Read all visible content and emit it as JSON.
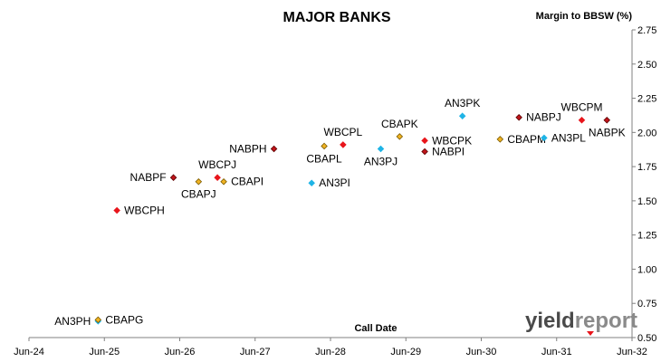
{
  "chart_data": {
    "type": "scatter",
    "title": "MAJOR BANKS",
    "ylabel": "Margin to BBSW (%)",
    "xlabel": "Call Date",
    "ylim": [
      0.5,
      2.75
    ],
    "yticks": [
      "0.50",
      "0.75",
      "1.00",
      "1.25",
      "1.50",
      "1.75",
      "2.00",
      "2.25",
      "2.50",
      "2.75"
    ],
    "xlim": [
      "2024-06",
      "2032-06"
    ],
    "xticks": [
      "Jun-24",
      "Jun-25",
      "Jun-26",
      "Jun-27",
      "Jun-28",
      "Jun-29",
      "Jun-30",
      "Jun-31",
      "Jun-32"
    ],
    "grid": false,
    "legend": "none",
    "colors": {
      "ANZ": "#1fb4e6",
      "CBA": "#f0b323",
      "NAB": "#c0151b",
      "WBC": "#e8151b"
    },
    "points": [
      {
        "label": "AN3PH",
        "bank": "ANZ",
        "x": "2025-05",
        "y": 0.62,
        "label_pos": "left"
      },
      {
        "label": "CBAPG",
        "bank": "CBA",
        "x": "2025-05",
        "y": 0.63,
        "label_pos": "right"
      },
      {
        "label": "WBCPH",
        "bank": "WBC",
        "x": "2025-08",
        "y": 1.43,
        "label_pos": "right"
      },
      {
        "label": "NABPF",
        "bank": "NAB",
        "x": "2026-05",
        "y": 1.67,
        "label_pos": "left"
      },
      {
        "label": "CBAPJ",
        "bank": "CBA",
        "x": "2026-09",
        "y": 1.64,
        "label_pos": "below"
      },
      {
        "label": "WBCPJ",
        "bank": "WBC",
        "x": "2026-12",
        "y": 1.67,
        "label_pos": "above"
      },
      {
        "label": "CBAPI",
        "bank": "CBA",
        "x": "2027-01",
        "y": 1.64,
        "label_pos": "right"
      },
      {
        "label": "NABPH",
        "bank": "NAB",
        "x": "2027-09",
        "y": 1.88,
        "label_pos": "left"
      },
      {
        "label": "AN3PI",
        "bank": "ANZ",
        "x": "2028-03",
        "y": 1.63,
        "label_pos": "right"
      },
      {
        "label": "CBAPL",
        "bank": "CBA",
        "x": "2028-05",
        "y": 1.9,
        "label_pos": "below"
      },
      {
        "label": "WBCPL",
        "bank": "WBC",
        "x": "2028-08",
        "y": 1.91,
        "label_pos": "above"
      },
      {
        "label": "AN3PJ",
        "bank": "ANZ",
        "x": "2029-02",
        "y": 1.88,
        "label_pos": "below"
      },
      {
        "label": "CBAPK",
        "bank": "CBA",
        "x": "2029-05",
        "y": 1.97,
        "label_pos": "above"
      },
      {
        "label": "WBCPK",
        "bank": "WBC",
        "x": "2029-09",
        "y": 1.94,
        "label_pos": "right"
      },
      {
        "label": "NABPI",
        "bank": "NAB",
        "x": "2029-09",
        "y": 1.86,
        "label_pos": "right"
      },
      {
        "label": "AN3PK",
        "bank": "ANZ",
        "x": "2030-03",
        "y": 2.12,
        "label_pos": "above"
      },
      {
        "label": "CBAPM",
        "bank": "CBA",
        "x": "2030-09",
        "y": 1.95,
        "label_pos": "right"
      },
      {
        "label": "NABPJ",
        "bank": "NAB",
        "x": "2030-12",
        "y": 2.11,
        "label_pos": "right"
      },
      {
        "label": "AN3PL",
        "bank": "ANZ",
        "x": "2031-04",
        "y": 1.96,
        "label_pos": "right"
      },
      {
        "label": "WBCPM",
        "bank": "WBC",
        "x": "2031-10",
        "y": 2.09,
        "label_pos": "above"
      },
      {
        "label": "NABPK",
        "bank": "NAB",
        "x": "2032-02",
        "y": 2.09,
        "label_pos": "below"
      }
    ]
  },
  "logo": {
    "yield": "yield",
    "report": "report"
  }
}
